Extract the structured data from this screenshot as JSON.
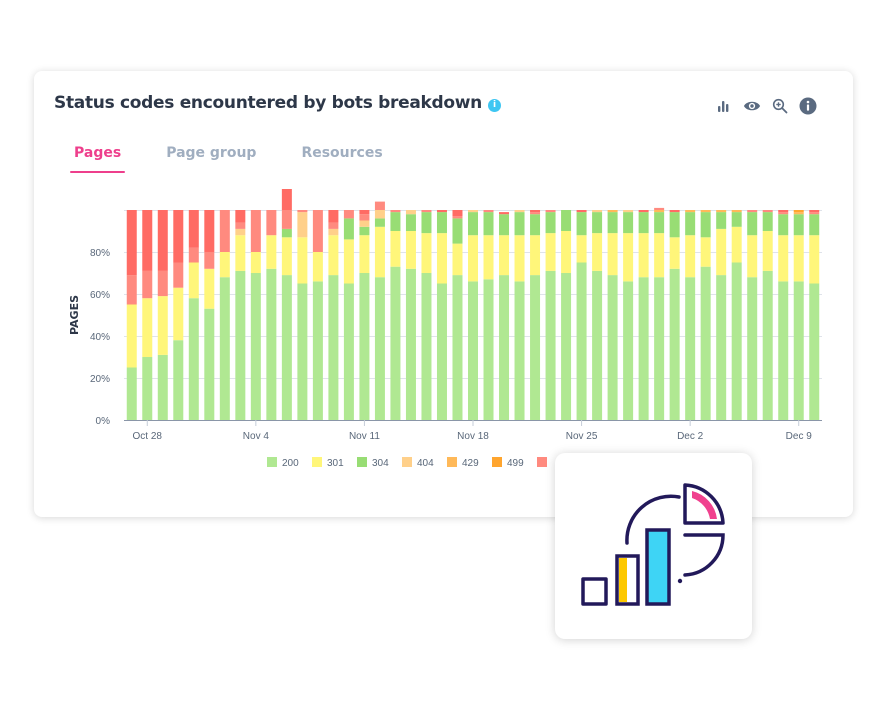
{
  "card": {
    "title": "Status codes encountered by bots breakdown",
    "title_info_glyph": "i",
    "toolbar": [
      "bar-chart-icon",
      "eye-icon",
      "zoom-in-icon",
      "info-icon"
    ],
    "tabs": [
      {
        "label": "Pages",
        "active": true
      },
      {
        "label": "Page group",
        "active": false
      },
      {
        "label": "Resources",
        "active": false
      }
    ]
  },
  "colors": {
    "accent": "#ee3f8c",
    "info": "#3ec6f2",
    "text": "#2d3748",
    "muted": "#a0aec0"
  },
  "chart_data": {
    "type": "bar",
    "stacked": true,
    "ylabel": "PAGES",
    "ylim": [
      0,
      100
    ],
    "yticks": [
      "0%",
      "20%",
      "40%",
      "60%",
      "80%"
    ],
    "ytick_values": [
      0,
      20,
      40,
      60,
      80
    ],
    "grid": true,
    "xtick_labels": [
      "Oct 28",
      "Nov 4",
      "Nov 11",
      "Nov 18",
      "Nov 25",
      "Dec 2",
      "Dec 9"
    ],
    "xtick_index": [
      1,
      8,
      15,
      22,
      29,
      36,
      43
    ],
    "bar_count": 45,
    "legend_position": "bottom",
    "series": [
      {
        "name": "200",
        "color": "#b0e892",
        "values": [
          25,
          30,
          31,
          38,
          58,
          53,
          68,
          71,
          70,
          72,
          69,
          65,
          66,
          69,
          65,
          70,
          68,
          73,
          72,
          70,
          65,
          69,
          66,
          67,
          69,
          66,
          69,
          71,
          70,
          75,
          71,
          69,
          66,
          68,
          68,
          72,
          68,
          73,
          69,
          75,
          68,
          71,
          66,
          66,
          65
        ]
      },
      {
        "name": "301",
        "color": "#fff67a",
        "values": [
          30,
          28,
          28,
          25,
          17,
          19,
          12,
          17,
          10,
          16,
          18,
          22,
          14,
          19,
          21,
          18,
          24,
          17,
          18,
          19,
          24,
          15,
          22,
          21,
          19,
          22,
          19,
          18,
          20,
          13,
          18,
          20,
          23,
          21,
          21,
          15,
          20,
          14,
          22,
          17,
          20,
          19,
          22,
          22,
          23
        ]
      },
      {
        "name": "304",
        "color": "#98dd74",
        "values": [
          0,
          0,
          0,
          0,
          0,
          0,
          0,
          0,
          0,
          0,
          4,
          0,
          0,
          0,
          10,
          4,
          4,
          9,
          8,
          10,
          10,
          12,
          11,
          11,
          10,
          11,
          10,
          10,
          10,
          11,
          10,
          10,
          10,
          10,
          10,
          12,
          11,
          12,
          8,
          7,
          11,
          9,
          10,
          10,
          10
        ]
      },
      {
        "name": "404",
        "color": "#ffd08a",
        "values": [
          0,
          0,
          0,
          0,
          0,
          0,
          0,
          3,
          0,
          0,
          0,
          12,
          0,
          3,
          0,
          3,
          4,
          0,
          2,
          0,
          0,
          0,
          1,
          0,
          0,
          1,
          0,
          0,
          0,
          0,
          1,
          0,
          1,
          0,
          0,
          0,
          0,
          0,
          0,
          0,
          0,
          0,
          0,
          0,
          0
        ]
      },
      {
        "name": "429",
        "color": "#ffb959",
        "values": [
          0,
          0,
          0,
          0,
          0,
          0,
          0,
          0,
          0,
          0,
          0,
          0,
          0,
          0,
          0,
          0,
          0,
          0,
          0,
          0,
          0,
          0,
          0,
          0,
          0,
          0,
          0,
          0,
          0,
          0,
          0,
          1,
          0,
          0,
          1,
          0,
          1,
          1,
          1,
          1,
          0,
          0,
          0,
          1,
          0
        ]
      },
      {
        "name": "499",
        "color": "#ffa52e",
        "values": [
          0,
          0,
          0,
          0,
          0,
          0,
          0,
          0,
          0,
          0,
          0,
          0,
          0,
          0,
          0,
          0,
          0,
          0,
          0,
          0,
          0,
          0,
          0,
          0,
          0,
          0,
          0,
          0,
          0,
          0,
          0,
          0,
          0,
          0,
          0,
          0,
          0,
          0,
          0,
          0,
          0,
          0,
          0,
          1,
          0
        ]
      },
      {
        "name": "",
        "color": "#ff8a7f",
        "values": [
          14,
          13,
          12,
          12,
          7,
          8,
          20,
          3,
          20,
          12,
          9,
          1,
          20,
          3,
          4,
          3,
          4,
          1,
          0,
          1,
          0,
          1,
          0,
          1,
          0,
          0,
          1,
          1,
          0,
          0,
          0,
          0,
          0,
          0,
          1,
          0,
          0,
          0,
          0,
          0,
          1,
          1,
          1,
          0,
          1
        ]
      },
      {
        "name": "",
        "color": "#ff6b64",
        "values": [
          31,
          29,
          29,
          25,
          18,
          20,
          0,
          6,
          0,
          0,
          10,
          0,
          0,
          6,
          0,
          2,
          0,
          0,
          0,
          0,
          1,
          3,
          0,
          0,
          1,
          0,
          1,
          0,
          0,
          1,
          0,
          0,
          0,
          1,
          0,
          1,
          0,
          0,
          0,
          0,
          0,
          0,
          1,
          0,
          1
        ]
      }
    ]
  },
  "legend_visible": [
    "200",
    "301",
    "304",
    "404",
    "429",
    "499"
  ],
  "overlay": {
    "icon": "analytics-chart-icon"
  }
}
